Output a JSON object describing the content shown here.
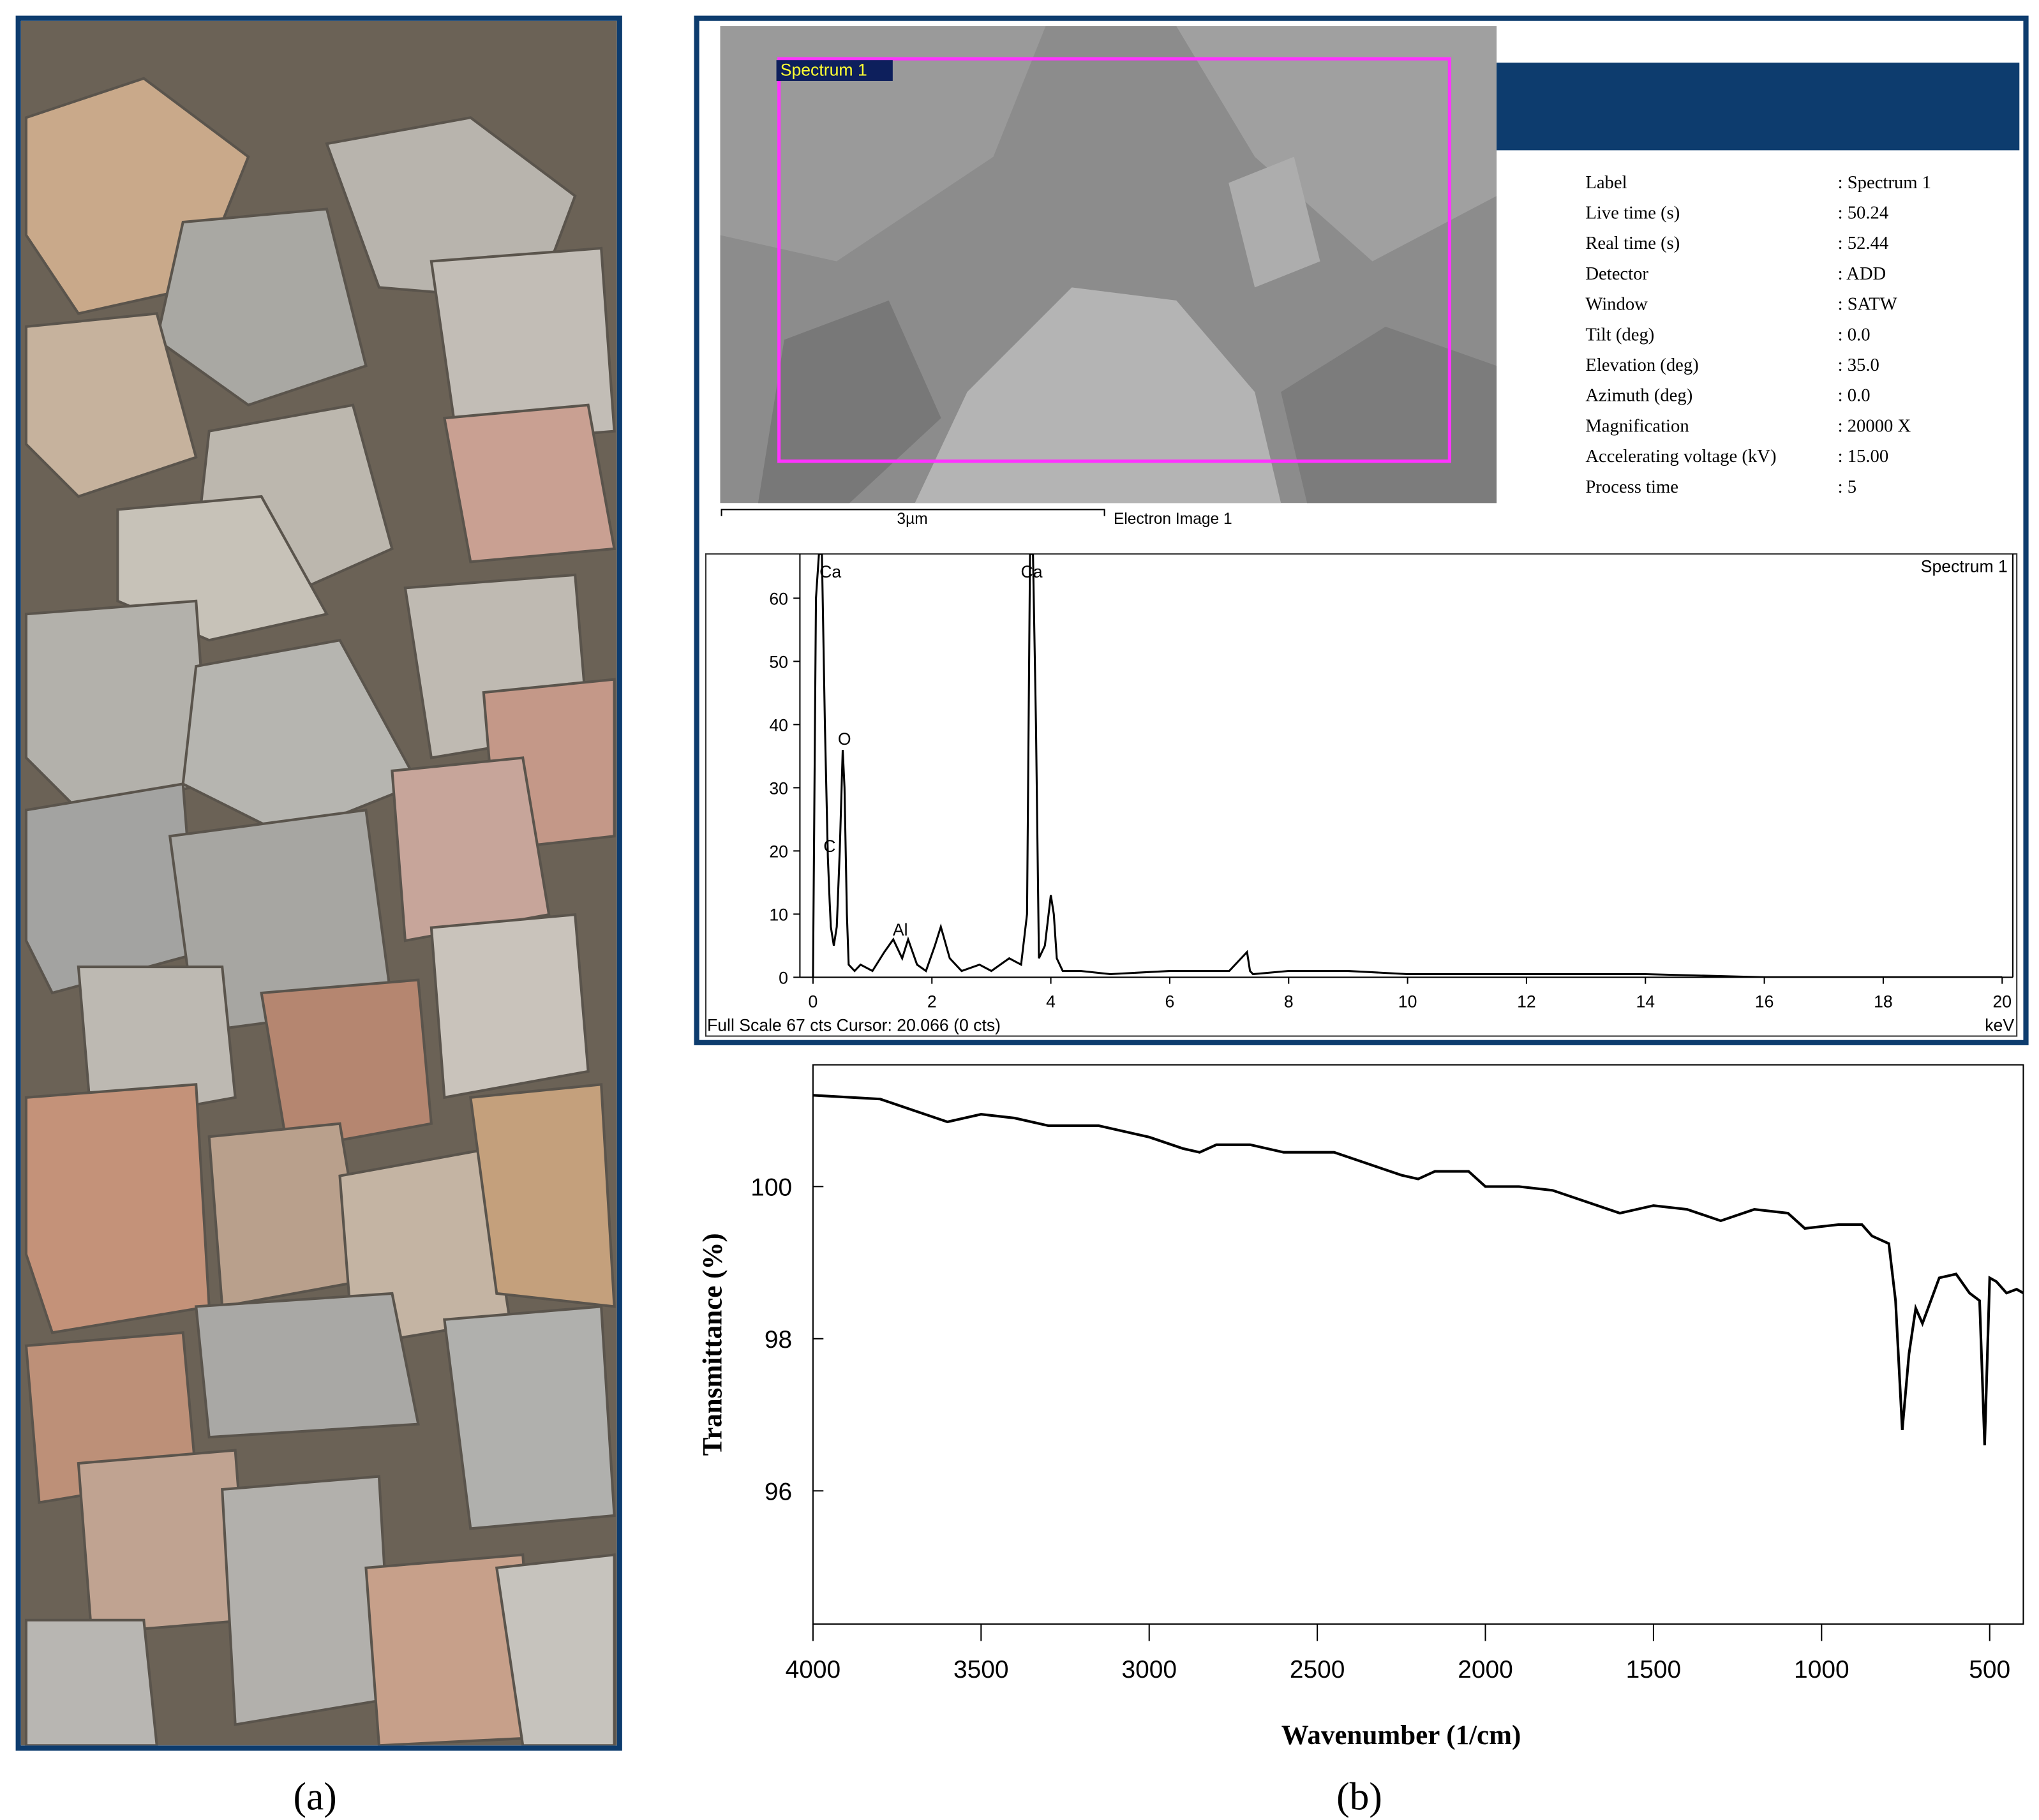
{
  "panel_labels": [
    "(a)",
    "(b)"
  ],
  "sem": {
    "region_label": "Spectrum 1",
    "scale_bar": "3µm",
    "caption": "Electron Image 1"
  },
  "acquisition_table": {
    "rows": [
      [
        "Label",
        ": Spectrum 1"
      ],
      [
        "Live time (s)",
        ": 50.24"
      ],
      [
        "Real time (s)",
        ": 52.44"
      ],
      [
        "Detector",
        ": ADD"
      ],
      [
        "Window",
        ": SATW"
      ],
      [
        "Tilt (deg)",
        ": 0.0"
      ],
      [
        "Elevation (deg)",
        ": 35.0"
      ],
      [
        "Azimuth (deg)",
        ": 0.0"
      ],
      [
        "Magnification",
        ": 20000 X"
      ],
      [
        "Accelerating voltage (kV)",
        ": 15.00"
      ],
      [
        "Process time",
        ": 5"
      ]
    ]
  },
  "chart_data": [
    {
      "type": "line",
      "x_label": "keV",
      "footer": "Full Scale 67 cts Cursor: 20.066 (0 cts)",
      "annotations": [
        "Ca",
        "Ca",
        "O",
        "C",
        "Al"
      ],
      "series": [
        {
          "name": "Spectrum 1",
          "color": "#000000",
          "x": [
            0,
            0.05,
            0.1,
            0.15,
            0.2,
            0.25,
            0.28,
            0.3,
            0.35,
            0.4,
            0.45,
            0.5,
            0.53,
            0.57,
            0.6,
            0.7,
            0.8,
            1.0,
            1.2,
            1.35,
            1.5,
            1.6,
            1.75,
            1.9,
            2.05,
            2.15,
            2.3,
            2.5,
            2.8,
            3.0,
            3.3,
            3.5,
            3.6,
            3.65,
            3.7,
            3.75,
            3.8,
            3.9,
            4.0,
            4.05,
            4.1,
            4.2,
            4.5,
            5,
            6,
            7,
            7.3,
            7.35,
            7.4,
            8,
            9,
            10,
            12,
            14,
            16,
            18,
            20
          ],
          "values": [
            0,
            60,
            67,
            67,
            40,
            19,
            12,
            8,
            5,
            8,
            20,
            36,
            30,
            10,
            2,
            1,
            2,
            1,
            4,
            6,
            3,
            6,
            2,
            1,
            5,
            8,
            3,
            1,
            2,
            1,
            3,
            2,
            10,
            67,
            67,
            40,
            3,
            5,
            13,
            10,
            3,
            1,
            1,
            0.5,
            1,
            1,
            4,
            1,
            0.5,
            1,
            1,
            0.5,
            0.5,
            0.5,
            0,
            0,
            0
          ]
        }
      ],
      "xlim": [
        -0.22,
        20.18
      ],
      "xticks": [
        0,
        2,
        4,
        6,
        8,
        10,
        12,
        14,
        16,
        18,
        20
      ],
      "ylim": [
        0,
        67
      ],
      "yticks": [
        0,
        10,
        20,
        30,
        40,
        50,
        60
      ]
    },
    {
      "type": "line",
      "x_label": "Wavenumber (1/cm)",
      "y_label": "Transmittance (%)",
      "series": [
        {
          "color": "#000000",
          "x": [
            4000,
            3800,
            3700,
            3600,
            3500,
            3400,
            3300,
            3150,
            3000,
            2900,
            2850,
            2800,
            2700,
            2600,
            2450,
            2350,
            2250,
            2200,
            2150,
            2050,
            2000,
            1900,
            1800,
            1700,
            1600,
            1500,
            1400,
            1300,
            1200,
            1100,
            1050,
            950,
            880,
            850,
            800,
            780,
            760,
            740,
            720,
            700,
            650,
            600,
            560,
            530,
            515,
            500,
            480,
            450,
            420,
            400
          ],
          "values": [
            101.2,
            101.15,
            101.0,
            100.85,
            100.95,
            100.9,
            100.8,
            100.8,
            100.65,
            100.5,
            100.45,
            100.55,
            100.55,
            100.45,
            100.45,
            100.3,
            100.15,
            100.1,
            100.2,
            100.2,
            100.0,
            100.0,
            99.95,
            99.8,
            99.65,
            99.75,
            99.7,
            99.55,
            99.7,
            99.65,
            99.45,
            99.5,
            99.5,
            99.35,
            99.25,
            98.5,
            96.8,
            97.8,
            98.4,
            98.2,
            98.8,
            98.85,
            98.6,
            98.5,
            96.6,
            98.8,
            98.75,
            98.6,
            98.65,
            98.6
          ]
        }
      ],
      "xlim": [
        4000,
        400
      ],
      "xticks": [
        4000,
        3500,
        3000,
        2500,
        2000,
        1500,
        1000,
        500
      ],
      "ylim": [
        94.25,
        101.6
      ],
      "yticks": [
        96,
        98,
        100
      ]
    }
  ]
}
